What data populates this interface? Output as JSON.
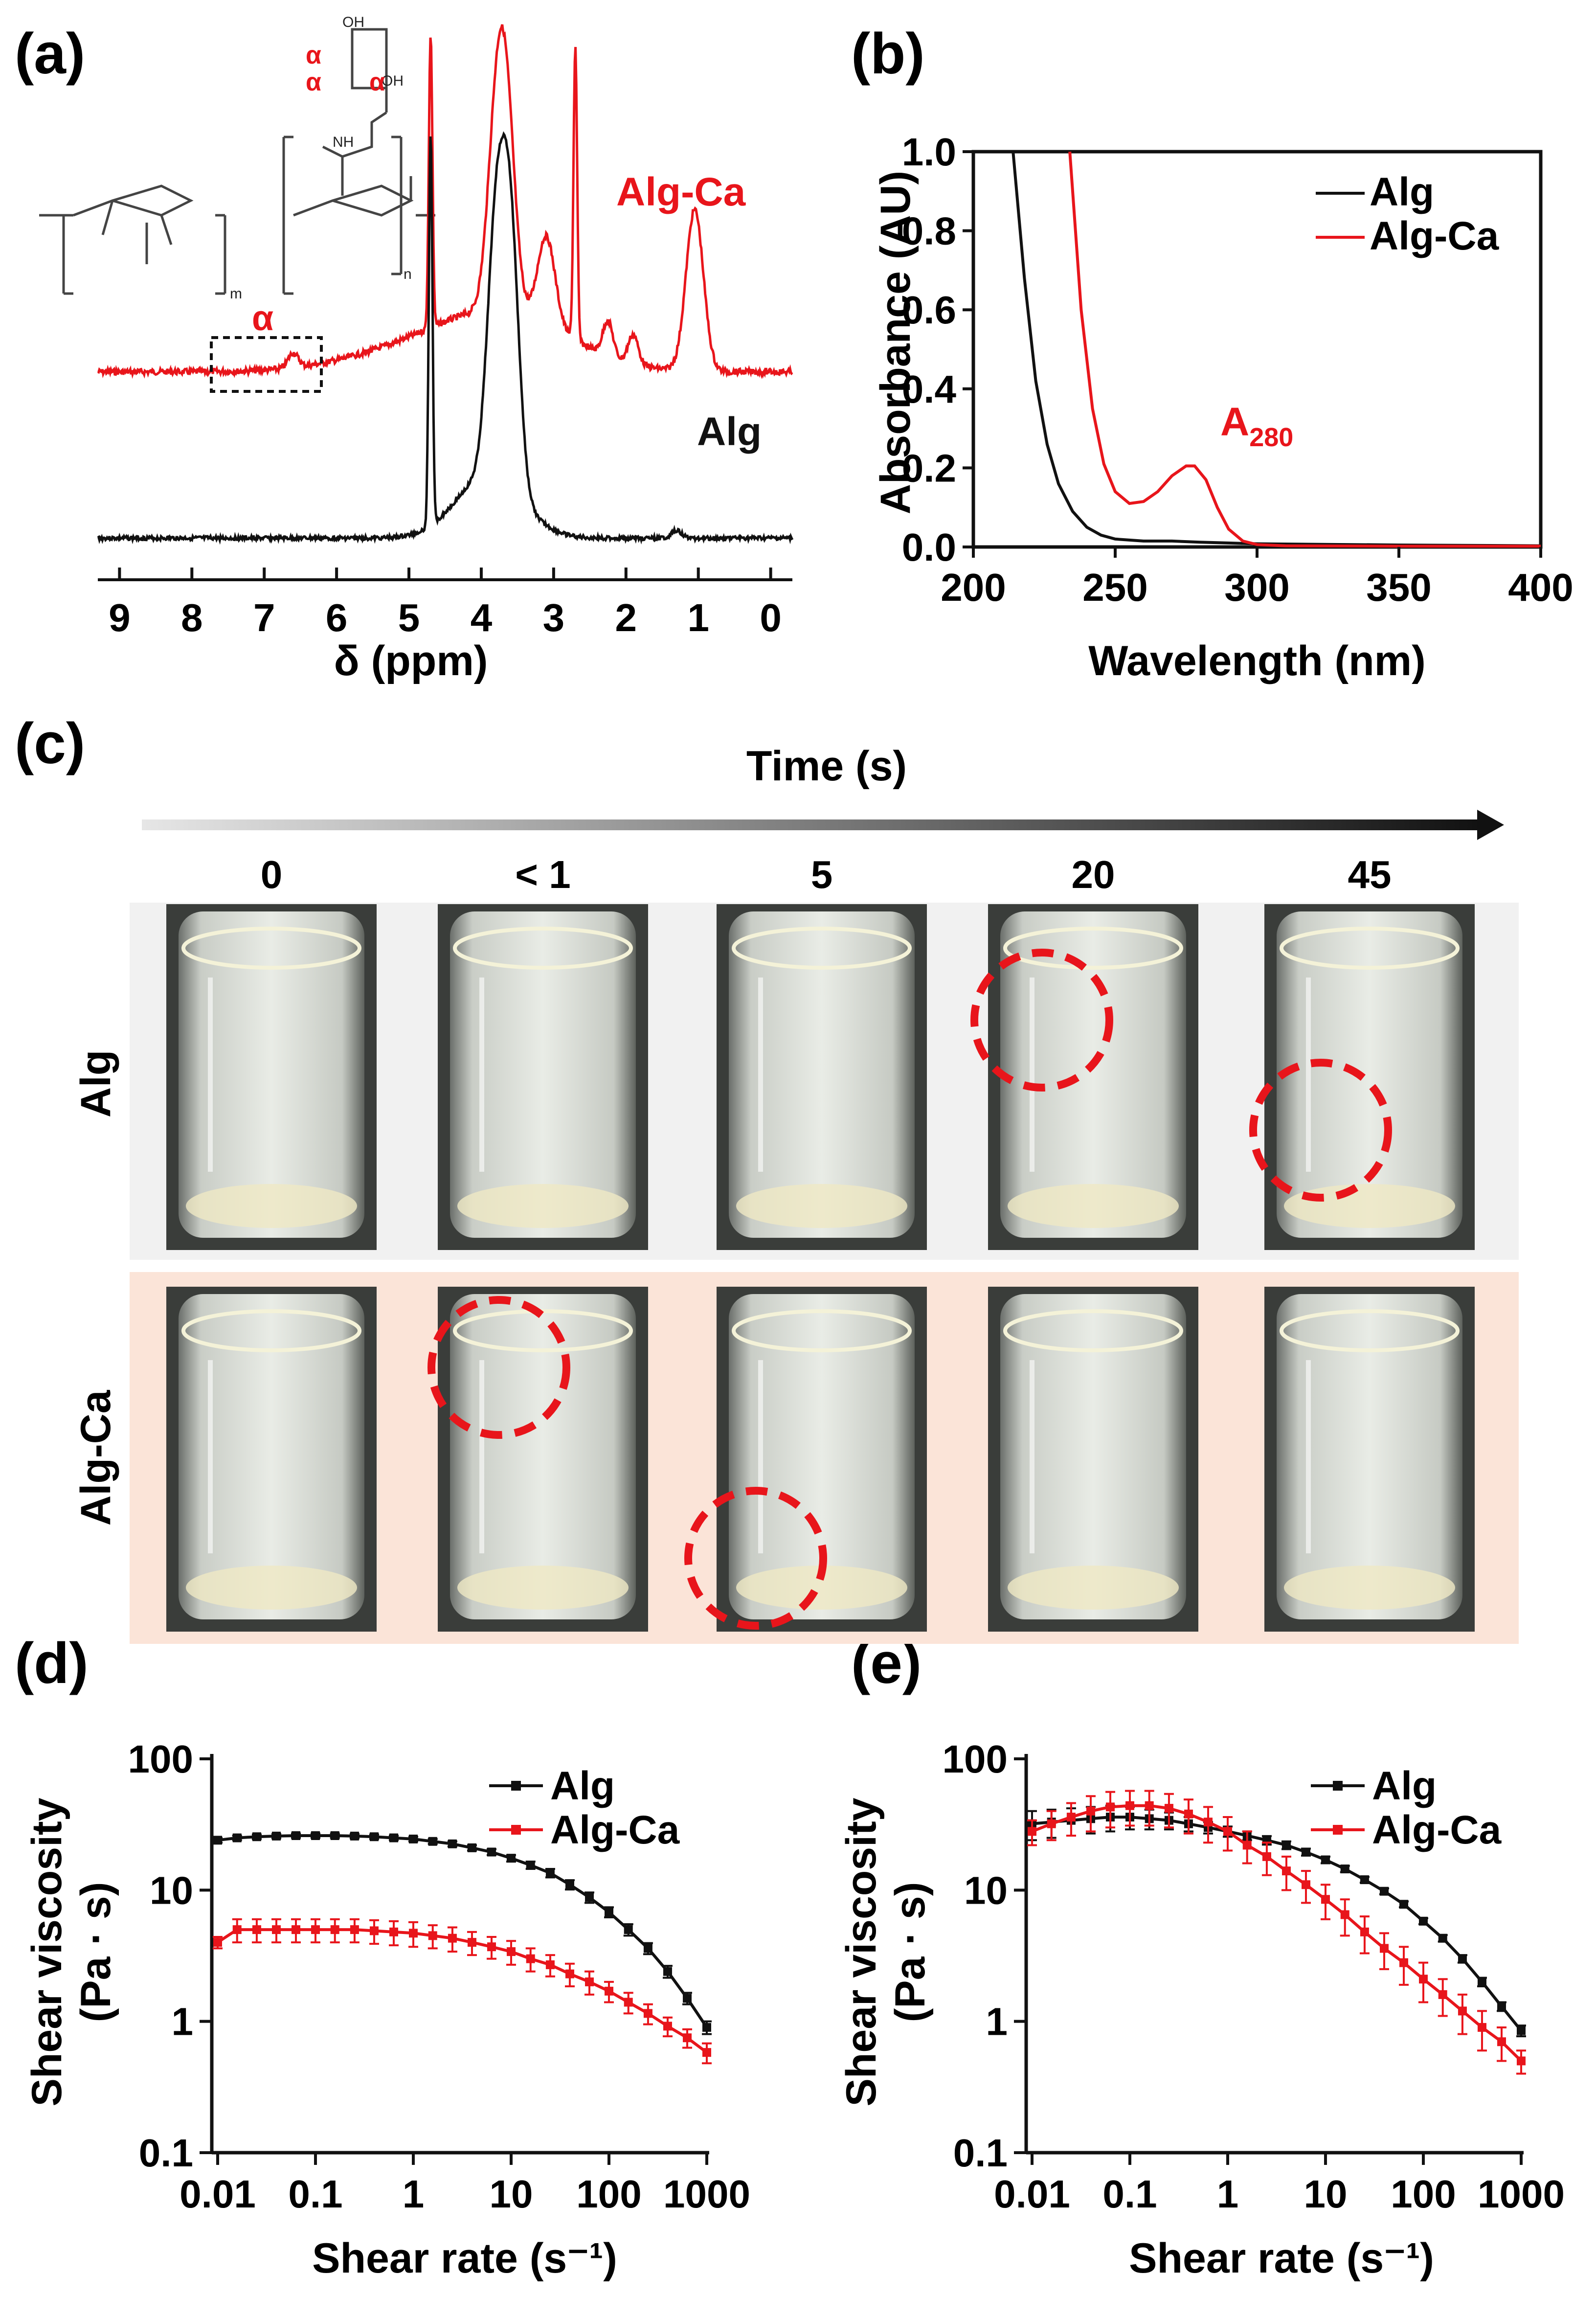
{
  "panel_labels": {
    "a": "(a)",
    "b": "(b)",
    "c": "(c)",
    "d": "(d)",
    "e": "(e)"
  },
  "colors": {
    "black": "#111111",
    "red": "#e8151b",
    "alg_bg": "#f1f1f1",
    "algca_bg": "#fbe4d8"
  },
  "photos": {
    "time_title": "Time (s)",
    "times": [
      "0",
      "< 1",
      "5",
      "20",
      "45"
    ],
    "rows": [
      "Alg",
      "Alg-Ca"
    ]
  },
  "chart_data": [
    {
      "id": "a",
      "type": "line",
      "title": "",
      "xlabel": "δ (ppm)",
      "ylabel": "",
      "xlim": [
        9.3,
        -0.3
      ],
      "x_ticks": [
        "9",
        "8",
        "7",
        "6",
        "5",
        "4",
        "3",
        "2",
        "1",
        "0"
      ],
      "annotations": [
        "α",
        "α",
        "α",
        "α"
      ],
      "series": [
        {
          "name": "Alg-Ca",
          "color": "#e8151b",
          "peaks": [
            [
              6.6,
              0.05
            ],
            [
              4.7,
              1.0
            ],
            [
              3.8,
              0.55
            ],
            [
              3.65,
              0.62
            ],
            [
              3.1,
              0.3
            ],
            [
              2.7,
              1.0
            ],
            [
              2.25,
              0.12
            ],
            [
              1.9,
              0.1
            ],
            [
              1.05,
              0.55
            ]
          ]
        },
        {
          "name": "Alg",
          "color": "#111111",
          "peaks": [
            [
              4.7,
              1.0
            ],
            [
              3.8,
              0.6
            ],
            [
              3.6,
              0.65
            ],
            [
              1.3,
              0.02
            ]
          ]
        }
      ]
    },
    {
      "id": "b",
      "type": "line",
      "title": "",
      "xlabel": "Wavelength (nm)",
      "ylabel": "Absorbance (AU)",
      "xlim": [
        200,
        400
      ],
      "ylim": [
        0,
        1.0
      ],
      "x_ticks": [
        "200",
        "250",
        "300",
        "350",
        "400"
      ],
      "y_ticks": [
        "0.0",
        "0.2",
        "0.4",
        "0.6",
        "0.8",
        "1.0"
      ],
      "annotation": {
        "text": "A",
        "sub": "280"
      },
      "series": [
        {
          "name": "Alg",
          "color": "#111111",
          "x": [
            214,
            218,
            222,
            226,
            230,
            235,
            240,
            245,
            250,
            260,
            270,
            280,
            290,
            300,
            350,
            400
          ],
          "y": [
            1.0,
            0.68,
            0.42,
            0.26,
            0.16,
            0.09,
            0.05,
            0.03,
            0.02,
            0.015,
            0.015,
            0.012,
            0.01,
            0.008,
            0.005,
            0.003
          ]
        },
        {
          "name": "Alg-Ca",
          "color": "#e8151b",
          "x": [
            234,
            238,
            242,
            246,
            250,
            255,
            260,
            265,
            270,
            275,
            278,
            282,
            286,
            290,
            295,
            300,
            310,
            350,
            400
          ],
          "y": [
            1.0,
            0.6,
            0.35,
            0.21,
            0.14,
            0.11,
            0.115,
            0.14,
            0.18,
            0.205,
            0.205,
            0.17,
            0.1,
            0.045,
            0.015,
            0.006,
            0.003,
            0.002,
            0.002
          ]
        }
      ]
    },
    {
      "id": "d",
      "type": "line",
      "title": "",
      "xlabel": "Shear rate (s⁻¹)",
      "ylabel": "Shear viscosity (Pa · s)",
      "ylabel_lines": [
        "Shear viscosity",
        "(Pa · s)"
      ],
      "xscale": "log",
      "yscale": "log",
      "xlim": [
        0.01,
        1000
      ],
      "ylim": [
        0.1,
        100
      ],
      "x_ticks": [
        "0.01",
        "0.1",
        "1",
        "10",
        "100",
        "1000"
      ],
      "y_ticks": [
        "0.1",
        "1",
        "10",
        "100"
      ],
      "series": [
        {
          "name": "Alg",
          "color": "#111111",
          "x": [
            0.01,
            0.0158,
            0.0251,
            0.0398,
            0.0631,
            0.1,
            0.158,
            0.251,
            0.398,
            0.631,
            1,
            1.58,
            2.51,
            3.98,
            6.31,
            10,
            15.8,
            25.1,
            39.8,
            63.1,
            100,
            158,
            251,
            398,
            631,
            1000
          ],
          "y": [
            24,
            25,
            25.5,
            25.8,
            26,
            26,
            26,
            25.8,
            25.5,
            25,
            24.5,
            23.5,
            22.5,
            21,
            19.5,
            17.5,
            15.5,
            13.5,
            11,
            8.8,
            6.8,
            5,
            3.6,
            2.4,
            1.5,
            0.9
          ],
          "err": [
            1,
            1,
            1,
            1,
            1,
            1,
            1,
            1,
            1,
            1,
            1,
            1,
            1,
            1,
            1,
            1,
            1,
            1,
            0.9,
            0.8,
            0.6,
            0.5,
            0.35,
            0.25,
            0.15,
            0.1
          ]
        },
        {
          "name": "Alg-Ca",
          "color": "#e8151b",
          "x": [
            0.01,
            0.0158,
            0.0251,
            0.0398,
            0.0631,
            0.1,
            0.158,
            0.251,
            0.398,
            0.631,
            1,
            1.58,
            2.51,
            3.98,
            6.31,
            10,
            15.8,
            25.1,
            39.8,
            63.1,
            100,
            158,
            251,
            398,
            631,
            1000
          ],
          "y": [
            4,
            5,
            5,
            5,
            5,
            5,
            5,
            5,
            4.9,
            4.8,
            4.7,
            4.5,
            4.3,
            4,
            3.7,
            3.4,
            3,
            2.7,
            2.3,
            2,
            1.7,
            1.4,
            1.15,
            0.92,
            0.75,
            0.58
          ],
          "err": [
            0.4,
            1,
            1,
            1,
            1,
            1,
            1,
            1,
            1,
            1,
            1,
            0.9,
            0.9,
            0.8,
            0.7,
            0.7,
            0.6,
            0.5,
            0.45,
            0.4,
            0.3,
            0.25,
            0.2,
            0.15,
            0.12,
            0.1
          ]
        }
      ]
    },
    {
      "id": "e",
      "type": "line",
      "title": "",
      "xlabel": "Shear rate (s⁻¹)",
      "ylabel": "Shear viscosity (Pa · s)",
      "ylabel_lines": [
        "Shear viscosity",
        "(Pa · s)"
      ],
      "xscale": "log",
      "yscale": "log",
      "xlim": [
        0.01,
        1000
      ],
      "ylim": [
        0.1,
        100
      ],
      "x_ticks": [
        "0.01",
        "0.1",
        "1",
        "10",
        "100",
        "1000"
      ],
      "y_ticks": [
        "0.1",
        "1",
        "10",
        "100"
      ],
      "series": [
        {
          "name": "Alg",
          "color": "#111111",
          "x": [
            0.01,
            0.0158,
            0.0251,
            0.0398,
            0.0631,
            0.1,
            0.158,
            0.251,
            0.398,
            0.631,
            1,
            1.58,
            2.51,
            3.98,
            6.31,
            10,
            15.8,
            25.1,
            39.8,
            63.1,
            100,
            158,
            251,
            398,
            631,
            1000
          ],
          "y": [
            32,
            33,
            34,
            35,
            36,
            36,
            35,
            34,
            32,
            30,
            28,
            26,
            24,
            22,
            19.5,
            17,
            14.5,
            12,
            9.8,
            7.8,
            5.8,
            4.3,
            3,
            2,
            1.3,
            0.85
          ],
          "err": [
            8,
            8,
            8,
            8,
            8,
            7,
            6,
            5,
            4,
            3,
            2.5,
            2,
            1.8,
            1.5,
            1.2,
            1,
            0.8,
            0.6,
            0.5,
            0.4,
            0.3,
            0.25,
            0.2,
            0.15,
            0.1,
            0.08
          ]
        },
        {
          "name": "Alg-Ca",
          "color": "#e8151b",
          "x": [
            0.01,
            0.0158,
            0.0251,
            0.0398,
            0.0631,
            0.1,
            0.158,
            0.251,
            0.398,
            0.631,
            1,
            1.58,
            2.51,
            3.98,
            6.31,
            10,
            15.8,
            25.1,
            39.8,
            63.1,
            100,
            158,
            251,
            398,
            631,
            1000
          ],
          "y": [
            28,
            32,
            36,
            40,
            43,
            44,
            44,
            42,
            38,
            33,
            28,
            22,
            18,
            14,
            11,
            8.5,
            6.5,
            4.8,
            3.6,
            2.8,
            2.1,
            1.6,
            1.2,
            0.9,
            0.7,
            0.5
          ],
          "err": [
            6,
            8,
            10,
            12,
            13,
            13,
            13,
            12,
            11,
            10,
            8,
            6,
            5,
            4,
            3,
            2.5,
            2,
            1.5,
            1.1,
            0.9,
            0.7,
            0.5,
            0.4,
            0.3,
            0.2,
            0.1
          ]
        }
      ]
    }
  ]
}
